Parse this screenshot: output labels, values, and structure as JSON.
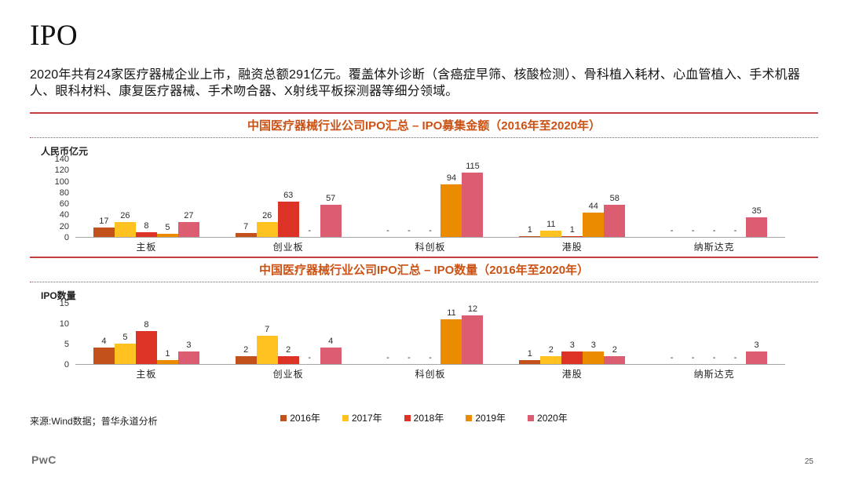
{
  "page": {
    "title": "IPO",
    "intro": "2020年共有24家医疗器械企业上市，融资总额291亿元。覆盖体外诊断（含癌症早筛、核酸检测）、骨科植入耗材、心血管植入、手术机器人、眼科材料、康复医疗器械、手术吻合器、X射线平板探测器等细分领域。",
    "source": "来源:Wind数据；普华永道分析",
    "logo": "PwC",
    "page_number": "25"
  },
  "colors": {
    "accent_line": "#C2413E",
    "title_text": "#CB5215",
    "baseline": "#A6A6A6",
    "year_2016": "#C2511B",
    "year_2017": "#FFC220",
    "year_2018": "#DD3327",
    "year_2019": "#EB8C00",
    "year_2020": "#DC5C72"
  },
  "missing_marker": "-",
  "chart_data": [
    {
      "type": "bar",
      "title": "中国医疗器械行业公司IPO汇总 – IPO募集金额（2016年至2020年）",
      "ylabel": "人民币亿元",
      "xlabel": "",
      "ylim": [
        0,
        140
      ],
      "yticks": [
        0,
        20,
        40,
        60,
        80,
        100,
        120,
        140
      ],
      "grid": false,
      "legend_position": "bottom",
      "categories": [
        "主板",
        "创业板",
        "科创板",
        "港股",
        "纳斯达克"
      ],
      "series": [
        {
          "name": "2016年",
          "color": "#C2511B",
          "values": [
            17,
            7,
            null,
            1,
            null
          ]
        },
        {
          "name": "2017年",
          "color": "#FFC220",
          "values": [
            26,
            26,
            null,
            11,
            null
          ]
        },
        {
          "name": "2018年",
          "color": "#DD3327",
          "values": [
            8,
            63,
            null,
            1,
            null
          ]
        },
        {
          "name": "2019年",
          "color": "#EB8C00",
          "values": [
            5,
            null,
            94,
            44,
            null
          ]
        },
        {
          "name": "2020年",
          "color": "#DC5C72",
          "values": [
            27,
            57,
            115,
            58,
            35
          ]
        }
      ]
    },
    {
      "type": "bar",
      "title": "中国医疗器械行业公司IPO汇总 – IPO数量（2016年至2020年）",
      "ylabel": "IPO数量",
      "xlabel": "",
      "ylim": [
        0,
        15
      ],
      "yticks": [
        0,
        5,
        10,
        15
      ],
      "grid": false,
      "legend_position": "bottom",
      "categories": [
        "主板",
        "创业板",
        "科创板",
        "港股",
        "纳斯达克"
      ],
      "series": [
        {
          "name": "2016年",
          "color": "#C2511B",
          "values": [
            4,
            2,
            null,
            1,
            null
          ]
        },
        {
          "name": "2017年",
          "color": "#FFC220",
          "values": [
            5,
            7,
            null,
            2,
            null
          ]
        },
        {
          "name": "2018年",
          "color": "#DD3327",
          "values": [
            8,
            2,
            null,
            3,
            null
          ]
        },
        {
          "name": "2019年",
          "color": "#EB8C00",
          "values": [
            1,
            null,
            11,
            3,
            null
          ]
        },
        {
          "name": "2020年",
          "color": "#DC5C72",
          "values": [
            3,
            4,
            12,
            2,
            3
          ]
        }
      ]
    }
  ]
}
